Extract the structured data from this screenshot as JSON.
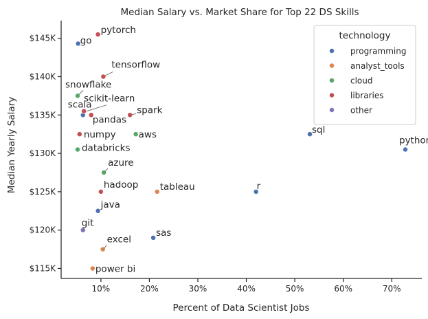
{
  "chart_data": {
    "type": "scatter",
    "title": "Median Salary vs. Market Share for Top 22 DS Skills",
    "xlabel": "Percent of Data Scientist Jobs",
    "ylabel": "Median Yearly Salary",
    "xlim": [
      1.8,
      76.2
    ],
    "ylim": [
      113700,
      147300
    ],
    "x_ticks": [
      10,
      20,
      30,
      40,
      50,
      60,
      70
    ],
    "x_tick_labels": [
      "10%",
      "20%",
      "30%",
      "40%",
      "50%",
      "60%",
      "70%"
    ],
    "y_ticks": [
      115000,
      120000,
      125000,
      130000,
      135000,
      140000,
      145000
    ],
    "y_tick_labels": [
      "$115K",
      "$120K",
      "$125K",
      "$130K",
      "$135K",
      "$140K",
      "$145K"
    ],
    "grid": false,
    "legend": {
      "title": "technology",
      "placement": "top-right",
      "entries": [
        {
          "name": "programming",
          "color": "#4c72b0"
        },
        {
          "name": "analyst_tools",
          "color": "#dd8452"
        },
        {
          "name": "cloud",
          "color": "#55a868"
        },
        {
          "name": "libraries",
          "color": "#c44e52"
        },
        {
          "name": "other",
          "color": "#8172b3"
        }
      ]
    },
    "points": [
      {
        "label": "python",
        "x": 72.8,
        "y": 130500,
        "group": "programming"
      },
      {
        "label": "sql",
        "x": 53.1,
        "y": 132500,
        "group": "programming"
      },
      {
        "label": "r",
        "x": 42.0,
        "y": 125000,
        "group": "programming"
      },
      {
        "label": "sas",
        "x": 20.8,
        "y": 119000,
        "group": "programming"
      },
      {
        "label": "go",
        "x": 5.3,
        "y": 144300,
        "group": "programming"
      },
      {
        "label": "scala",
        "x": 6.3,
        "y": 135000,
        "group": "programming"
      },
      {
        "label": "java",
        "x": 9.4,
        "y": 122500,
        "group": "programming"
      },
      {
        "label": "tableau",
        "x": 21.6,
        "y": 125000,
        "group": "analyst_tools"
      },
      {
        "label": "excel",
        "x": 10.4,
        "y": 117500,
        "group": "analyst_tools"
      },
      {
        "label": "power bi",
        "x": 8.3,
        "y": 115000,
        "group": "analyst_tools"
      },
      {
        "label": "aws",
        "x": 17.2,
        "y": 132500,
        "group": "cloud"
      },
      {
        "label": "azure",
        "x": 10.6,
        "y": 127500,
        "group": "cloud"
      },
      {
        "label": "snowflake",
        "x": 5.2,
        "y": 137500,
        "group": "cloud"
      },
      {
        "label": "databricks",
        "x": 5.2,
        "y": 130500,
        "group": "cloud"
      },
      {
        "label": "pytorch",
        "x": 9.4,
        "y": 145500,
        "group": "libraries"
      },
      {
        "label": "tensorflow",
        "x": 10.5,
        "y": 140000,
        "group": "libraries"
      },
      {
        "label": "scikit-learn",
        "x": 6.5,
        "y": 135500,
        "group": "libraries"
      },
      {
        "label": "pandas",
        "x": 8.0,
        "y": 135000,
        "group": "libraries"
      },
      {
        "label": "spark",
        "x": 16.0,
        "y": 135000,
        "group": "libraries"
      },
      {
        "label": "numpy",
        "x": 5.6,
        "y": 132500,
        "group": "libraries"
      },
      {
        "label": "hadoop",
        "x": 10.0,
        "y": 125000,
        "group": "libraries"
      },
      {
        "label": "git",
        "x": 6.3,
        "y": 120000,
        "group": "other"
      }
    ]
  }
}
